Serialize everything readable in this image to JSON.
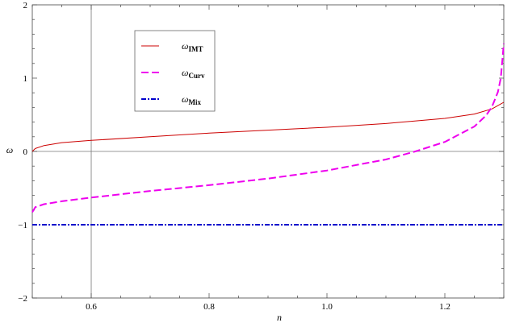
{
  "chart_data": {
    "type": "line",
    "title": "",
    "xlabel": "n",
    "ylabel": "ω",
    "xlim": [
      0.5,
      1.3
    ],
    "ylim": [
      -2,
      2
    ],
    "x_ticks": [
      0.6,
      0.8,
      1.0,
      1.2
    ],
    "x_tick_labels": [
      "0.6",
      "0.8",
      "1.0",
      "1.2"
    ],
    "y_ticks": [
      -2,
      -1,
      0,
      1,
      2
    ],
    "y_tick_labels": [
      "−2",
      "−1",
      "0",
      "1",
      "2"
    ],
    "reference_lines": {
      "vertical_x": 0.6,
      "horizontal_y": 0
    },
    "grid": false,
    "legend_position": "top-left",
    "series": [
      {
        "name": "ω",
        "subscript": "IMT",
        "color": "#cc0000",
        "style": "solid",
        "x": [
          0.5,
          0.505,
          0.52,
          0.55,
          0.6,
          0.7,
          0.8,
          0.9,
          1.0,
          1.1,
          1.2,
          1.25,
          1.28,
          1.3
        ],
        "y": [
          0.0,
          0.04,
          0.08,
          0.12,
          0.15,
          0.2,
          0.25,
          0.29,
          0.33,
          0.38,
          0.45,
          0.51,
          0.58,
          0.67
        ]
      },
      {
        "name": "ω",
        "subscript": "Curv",
        "color": "#ee00ee",
        "style": "dashed",
        "x": [
          0.5,
          0.505,
          0.52,
          0.55,
          0.6,
          0.7,
          0.8,
          0.9,
          1.0,
          1.1,
          1.15,
          1.2,
          1.25,
          1.27,
          1.28,
          1.29,
          1.295,
          1.3
        ],
        "y": [
          -0.83,
          -0.76,
          -0.72,
          -0.68,
          -0.63,
          -0.54,
          -0.46,
          -0.37,
          -0.26,
          -0.11,
          0.0,
          0.13,
          0.34,
          0.49,
          0.61,
          0.81,
          1.0,
          1.47
        ]
      },
      {
        "name": "ω",
        "subscript": "Mix",
        "color": "#0000cc",
        "style": "dashdot",
        "x": [
          0.5,
          1.3
        ],
        "y": [
          -1,
          -1
        ]
      }
    ]
  }
}
